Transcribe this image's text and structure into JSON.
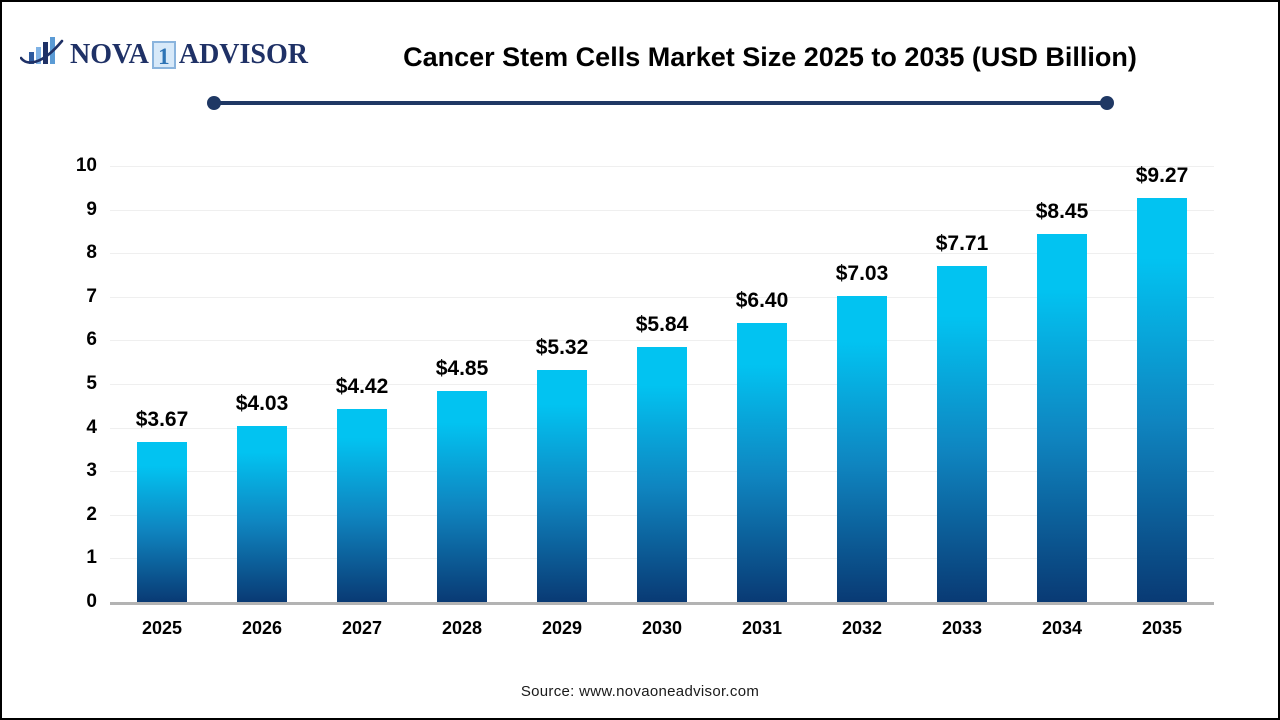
{
  "header": {
    "logo": {
      "icon": "bar-chart-swoosh-icon",
      "text_nova": "NOVA",
      "text_one": "1",
      "text_advisor": "ADVISOR",
      "navy": "#1f3166",
      "light_blue": "#6fa8dc",
      "one_box_bg": "#d7e9f9",
      "one_box_border": "#8ab4dd",
      "one_digit_color": "#2e74b5"
    },
    "title": "Cancer Stem Cells Market Size 2025 to 2035 (USD Billion)",
    "divider_color": "#1f3864"
  },
  "chart_data": {
    "type": "bar",
    "title": "Cancer Stem Cells Market Size 2025 to 2035 (USD Billion)",
    "categories": [
      "2025",
      "2026",
      "2027",
      "2028",
      "2029",
      "2030",
      "2031",
      "2032",
      "2033",
      "2034",
      "2035"
    ],
    "values": [
      3.67,
      4.03,
      4.42,
      4.85,
      5.32,
      5.84,
      6.4,
      7.03,
      7.71,
      8.45,
      9.27
    ],
    "value_labels": [
      "$3.67",
      "$4.03",
      "$4.42",
      "$4.85",
      "$5.32",
      "$5.84",
      "$6.40",
      "$7.03",
      "$7.71",
      "$8.45",
      "$9.27"
    ],
    "unit": "USD Billion",
    "ylim": [
      0,
      10
    ],
    "yticks": [
      0,
      1,
      2,
      3,
      4,
      5,
      6,
      7,
      8,
      9,
      10
    ],
    "grid": true,
    "legend": false,
    "gridline_color": "#efefef",
    "axis_line_color": "#b3b3b3",
    "bar_gradient_top": "#02c3f1",
    "bar_gradient_mid": "#0f85c0",
    "bar_gradient_bottom": "#093a74"
  },
  "footer": {
    "source": "Source: www.novaoneadvisor.com"
  }
}
